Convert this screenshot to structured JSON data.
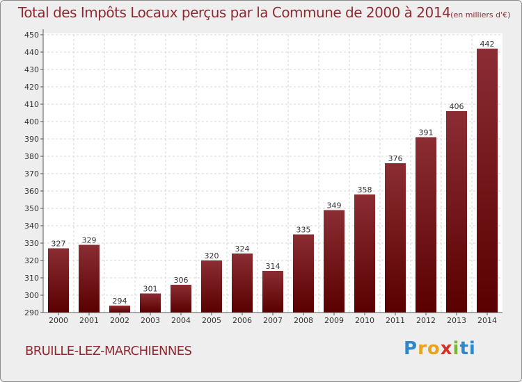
{
  "chart_data": {
    "type": "bar",
    "title": "Total des Impôts Locaux perçus par la Commune de 2000 à 2014",
    "unit_label": "(en milliers d'€)",
    "categories": [
      "2000",
      "2001",
      "2002",
      "2003",
      "2004",
      "2005",
      "2006",
      "2007",
      "2008",
      "2009",
      "2010",
      "2011",
      "2012",
      "2013",
      "2014"
    ],
    "values": [
      327,
      329,
      294,
      301,
      306,
      320,
      324,
      314,
      335,
      349,
      358,
      376,
      391,
      406,
      442
    ],
    "ylim": [
      290,
      450
    ],
    "yticks": [
      290,
      300,
      310,
      320,
      330,
      340,
      350,
      360,
      370,
      380,
      390,
      400,
      410,
      420,
      430,
      440,
      450
    ],
    "grid": true,
    "bar_color_top": "#8b2d33",
    "bar_color_bottom": "#5a0000"
  },
  "commune": "BRUILLE-LEZ-MARCHIENNES",
  "logo": {
    "parts": [
      "P",
      "r",
      "o",
      "x",
      "i",
      "ti"
    ]
  }
}
